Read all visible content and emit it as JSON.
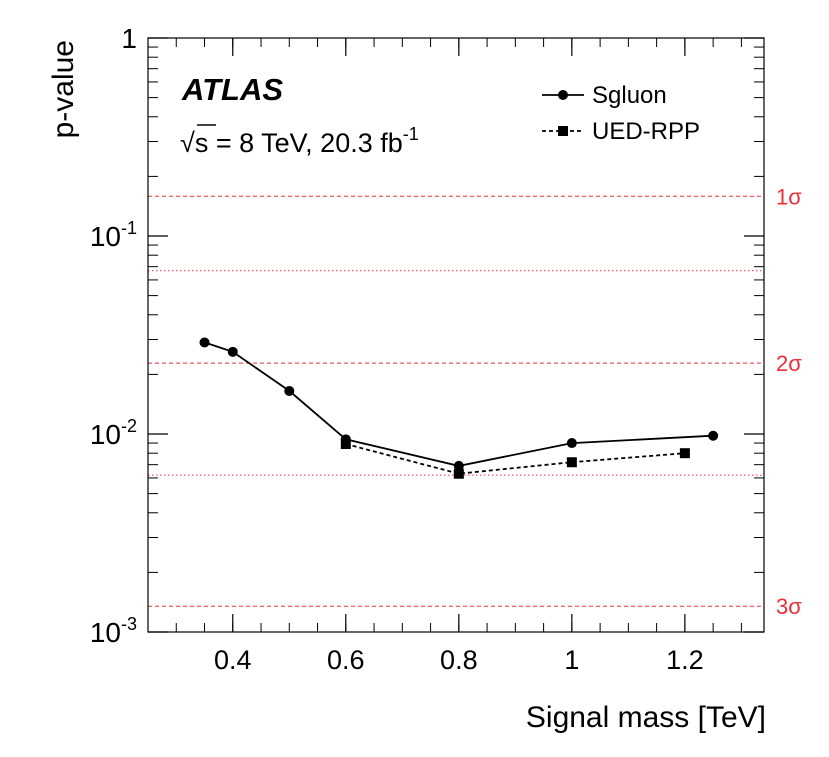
{
  "chart_data": {
    "type": "line",
    "ylabel": "p-value",
    "xlabel": "Signal mass [TeV]",
    "experiment": "ATLAS",
    "energy": {
      "sqrt": "√",
      "s": "s",
      "rest": " = 8 TeV, 20.3 fb",
      "sup": "-1"
    },
    "xlim": [
      0.25,
      1.34
    ],
    "ylim": [
      0.001,
      1
    ],
    "yscale": "log",
    "x_ticks": [
      {
        "value": 0.4,
        "label": "0.4"
      },
      {
        "value": 0.6,
        "label": "0.6"
      },
      {
        "value": 0.8,
        "label": "0.8"
      },
      {
        "value": 1.0,
        "label": "1"
      },
      {
        "value": 1.2,
        "label": "1.2"
      }
    ],
    "y_ticks": [
      {
        "value": 1,
        "base": "1",
        "exp": ""
      },
      {
        "value": 0.1,
        "base": "10",
        "exp": "-1"
      },
      {
        "value": 0.01,
        "base": "10",
        "exp": "-2"
      },
      {
        "value": 0.001,
        "base": "10",
        "exp": "-3"
      }
    ],
    "sigma_lines": [
      {
        "value": 0.1587,
        "label": "1σ",
        "style": "dashed"
      },
      {
        "value": 0.0668,
        "label": "",
        "style": "dotted"
      },
      {
        "value": 0.0228,
        "label": "2σ",
        "style": "dashed"
      },
      {
        "value": 0.0062,
        "label": "",
        "style": "dotted"
      },
      {
        "value": 0.00135,
        "label": "3σ",
        "style": "dashed"
      }
    ],
    "series": [
      {
        "name": "Sgluon",
        "marker": "circle",
        "line": "solid",
        "x": [
          0.35,
          0.4,
          0.5,
          0.6,
          0.8,
          1.0,
          1.25
        ],
        "y": [
          0.029,
          0.026,
          0.0165,
          0.0094,
          0.0069,
          0.009,
          0.0098
        ]
      },
      {
        "name": "UED-RPP",
        "marker": "square",
        "line": "dashed",
        "x": [
          0.6,
          0.8,
          1.0,
          1.2
        ],
        "y": [
          0.0089,
          0.0063,
          0.0072,
          0.008
        ]
      }
    ],
    "legend_position": "top-right",
    "colors": {
      "data": "#000000",
      "sigma": "#e8303a"
    }
  }
}
